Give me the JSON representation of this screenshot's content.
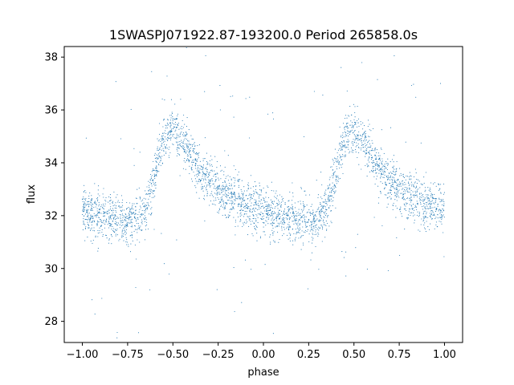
{
  "chart_data": {
    "type": "scatter",
    "title": "1SWASPJ071922.87-193200.0 Period 265858.0s",
    "xlabel": "phase",
    "ylabel": "flux",
    "xlim": [
      -1.1,
      1.1
    ],
    "ylim": [
      27.2,
      38.4
    ],
    "xticks": [
      -1.0,
      -0.75,
      -0.5,
      -0.25,
      0.0,
      0.25,
      0.5,
      0.75,
      1.0
    ],
    "xtick_labels": [
      "−1.00",
      "−0.75",
      "−0.50",
      "−0.25",
      "0.00",
      "0.25",
      "0.50",
      "0.75",
      "1.00"
    ],
    "yticks": [
      28,
      30,
      32,
      34,
      36,
      38
    ],
    "ytick_labels": [
      "28",
      "30",
      "32",
      "34",
      "36",
      "38"
    ],
    "grid": false,
    "point_color": "#1f77b4",
    "profile": {
      "phase": [
        0.0,
        0.05,
        0.1,
        0.15,
        0.2,
        0.25,
        0.3,
        0.35,
        0.4,
        0.425,
        0.45,
        0.475,
        0.5,
        0.55,
        0.6,
        0.65,
        0.7,
        0.75,
        0.8,
        0.85,
        0.9,
        0.95,
        1.0
      ],
      "flux": [
        32.3,
        32.0,
        31.9,
        31.9,
        31.8,
        31.8,
        31.9,
        32.3,
        33.5,
        34.3,
        34.9,
        35.1,
        35.2,
        34.9,
        34.2,
        33.7,
        33.3,
        33.0,
        32.8,
        32.6,
        32.4,
        32.3,
        32.3
      ],
      "scatter": 0.45
    },
    "n_points": 3400
  }
}
